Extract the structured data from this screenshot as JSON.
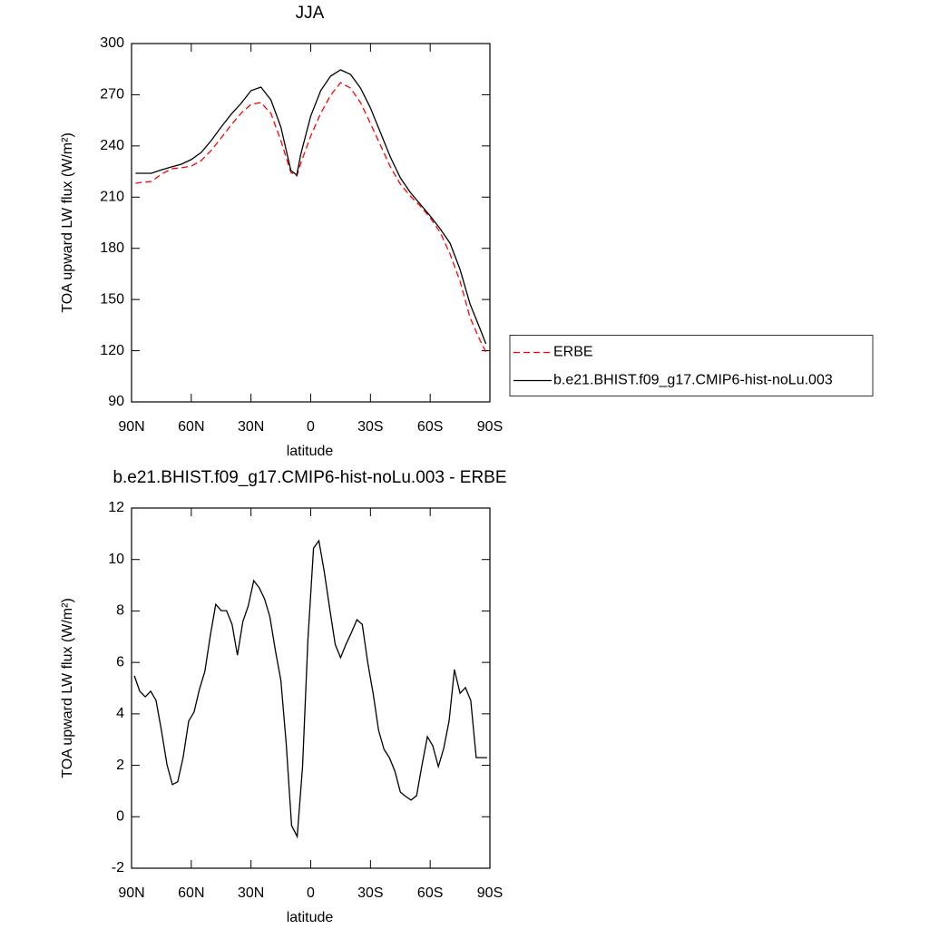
{
  "chart_data": [
    {
      "type": "line",
      "title": "JJA",
      "x_label": "latitude",
      "y_label": "TOA upward LW flux (W/m²)",
      "x": [
        88,
        85,
        80,
        75,
        70,
        65,
        60,
        55,
        50,
        45,
        40,
        35,
        30,
        25,
        20,
        15,
        10,
        7,
        5,
        0,
        -5,
        -10,
        -15,
        -20,
        -25,
        -30,
        -35,
        -40,
        -45,
        -50,
        -55,
        -60,
        -65,
        -70,
        -75,
        -80,
        -85,
        -88
      ],
      "series": [
        {
          "name": "ERBE",
          "color": "#ff0000",
          "line_style": "dashed",
          "values": [
            218.1,
            218.7,
            219.2,
            223.4,
            226.6,
            227.2,
            228.2,
            231.4,
            237.3,
            244.7,
            252.2,
            259.1,
            264.4,
            265.4,
            259.1,
            243.1,
            224.5,
            222.4,
            229.8,
            245.8,
            259.1,
            269.7,
            277.1,
            273.9,
            265.4,
            253.2,
            240.5,
            227.7,
            217.6,
            210.7,
            204.8,
            197.9,
            189.4,
            176.6,
            160.7,
            139.4,
            126.2,
            119.3
          ]
        },
        {
          "name": "b.e21.BHIST.f09_g17.CMIP6-hist-noLu.003",
          "color": "#000000",
          "line_style": "solid",
          "values": [
            224.0,
            224.0,
            224.0,
            226.0,
            227.7,
            229.3,
            232.0,
            236.2,
            243.1,
            251.1,
            258.5,
            264.9,
            272.4,
            274.5,
            267.0,
            251.1,
            225.6,
            222.9,
            235.1,
            257.5,
            272.4,
            280.9,
            284.6,
            281.9,
            273.9,
            262.3,
            247.9,
            233.5,
            221.3,
            212.8,
            205.9,
            199.0,
            191.5,
            183.0,
            167.6,
            147.4,
            133.0,
            124.0
          ]
        }
      ],
      "xlim": [
        90,
        -90
      ],
      "xticks": [
        {
          "value": 90,
          "label": "90N"
        },
        {
          "value": 60,
          "label": "60N"
        },
        {
          "value": 30,
          "label": "30N"
        },
        0,
        {
          "value": -30,
          "label": "30S"
        },
        {
          "value": -60,
          "label": "60S"
        },
        {
          "value": -90,
          "label": "90S"
        }
      ],
      "ylim": [
        90,
        300
      ],
      "yticks": [
        90,
        120,
        150,
        180,
        210,
        240,
        270,
        300
      ],
      "legend": "right"
    },
    {
      "type": "line",
      "title": "b.e21.BHIST.f09_g17.CMIP6-hist-noLu.003 - ERBE",
      "x_label": "latitude",
      "y_label": "TOA upward LW flux (W/m²)",
      "x": [
        88.6,
        85.9,
        83.1,
        80.4,
        77.7,
        75.0,
        72.2,
        69.5,
        66.8,
        64.1,
        61.3,
        58.6,
        55.9,
        53.2,
        50.4,
        47.7,
        45.0,
        42.3,
        39.5,
        36.8,
        34.1,
        31.4,
        28.6,
        25.9,
        23.2,
        20.5,
        17.7,
        15.0,
        12.3,
        9.6,
        6.8,
        4.1,
        1.4,
        -1.4,
        -4.1,
        -6.8,
        -9.6,
        -12.3,
        -15.0,
        -17.7,
        -20.5,
        -23.2,
        -25.9,
        -28.6,
        -31.4,
        -34.1,
        -36.8,
        -39.5,
        -42.3,
        -45.0,
        -47.7,
        -50.4,
        -53.2,
        -55.9,
        -58.6,
        -61.3,
        -64.1,
        -66.8,
        -69.5,
        -72.2,
        -75.0,
        -77.7,
        -80.4,
        -83.1,
        -85.9,
        -88.6
      ],
      "series": [
        {
          "color": "#000000",
          "line_style": "solid",
          "values": [
            5.48,
            4.88,
            4.66,
            4.88,
            4.52,
            3.36,
            2.02,
            1.25,
            1.36,
            2.3,
            3.72,
            4.07,
            4.95,
            5.65,
            7.06,
            8.26,
            8.01,
            8.01,
            7.48,
            6.28,
            7.59,
            8.19,
            9.18,
            8.9,
            8.47,
            7.77,
            6.43,
            5.3,
            2.83,
            -0.34,
            -0.77,
            1.95,
            6.88,
            10.44,
            10.73,
            9.53,
            8.05,
            6.7,
            6.18,
            6.7,
            7.17,
            7.66,
            7.48,
            6.0,
            4.77,
            3.36,
            2.62,
            2.3,
            1.77,
            0.96,
            0.79,
            0.65,
            0.82,
            2.02,
            3.11,
            2.76,
            1.95,
            2.66,
            3.72,
            5.72,
            4.8,
            5.02,
            4.52,
            2.3,
            2.3,
            2.3
          ]
        }
      ],
      "xlim": [
        90,
        -90
      ],
      "xticks": [
        {
          "value": 90,
          "label": "90N"
        },
        {
          "value": 60,
          "label": "60N"
        },
        {
          "value": 30,
          "label": "30N"
        },
        0,
        {
          "value": -30,
          "label": "30S"
        },
        {
          "value": -60,
          "label": "60S"
        },
        {
          "value": -90,
          "label": "90S"
        }
      ],
      "ylim": [
        -2,
        12
      ],
      "yticks": [
        -2,
        0,
        2,
        4,
        6,
        8,
        10,
        12
      ]
    }
  ]
}
